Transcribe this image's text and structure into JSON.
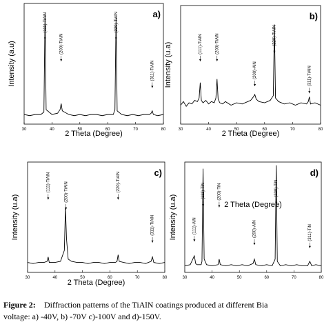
{
  "chart_data": [
    {
      "type": "line",
      "label": "a)",
      "xlabel": "2 Theta (Degree)",
      "ylabel": "Intensity (a.u)",
      "x": [
        30,
        32,
        34,
        36,
        37.1,
        37.5,
        37.9,
        40,
        42,
        42.9,
        43.3,
        43.7,
        46,
        48,
        50,
        52,
        54,
        56,
        58,
        60,
        62,
        62.6,
        63,
        63.4,
        65,
        67,
        69,
        71,
        73,
        75,
        75.6,
        76,
        76.4,
        78,
        80
      ],
      "series": [
        {
          "color": "#000000",
          "values": [
            8,
            7,
            8,
            8,
            10,
            91,
            12,
            8,
            9,
            12,
            17,
            11,
            8,
            7,
            8,
            7,
            8,
            8,
            7,
            8,
            8,
            12,
            89,
            11,
            8,
            7,
            8,
            7,
            8,
            8,
            9,
            11,
            8,
            7,
            8
          ]
        }
      ],
      "xlim": [
        30,
        80
      ],
      "ylim": [
        0,
        100
      ],
      "xticks": [
        30,
        40,
        50,
        60,
        70,
        80
      ],
      "annotations": [
        {
          "text": "(111)-TiAlN",
          "x": 37.5,
          "y": 70
        },
        {
          "text": "(200)-TiAlN",
          "x": 43.3,
          "y": 52
        },
        {
          "text": "(220)-TiAlN",
          "x": 63,
          "y": 70
        },
        {
          "text": "(311)-TiAlN",
          "x": 76,
          "y": 30
        }
      ]
    },
    {
      "type": "line",
      "label": "b)",
      "xlabel": "2 Theta (Degree)",
      "ylabel": "Intensity (u.a)",
      "x": [
        30,
        31,
        32,
        33,
        34,
        35,
        36,
        36.6,
        37,
        37.4,
        38,
        39,
        40,
        41,
        42,
        42.6,
        43,
        43.4,
        44,
        45,
        46,
        48,
        50,
        52,
        54,
        55,
        56,
        56.5,
        57,
        58,
        60,
        62,
        63.1,
        63.5,
        63.9,
        65,
        67,
        69,
        71,
        73,
        75,
        75.6,
        76,
        76.4,
        78,
        80
      ],
      "series": [
        {
          "color": "#000000",
          "values": [
            16,
            19,
            15,
            18,
            17,
            20,
            19,
            22,
            35,
            20,
            18,
            20,
            17,
            19,
            18,
            22,
            38,
            21,
            18,
            17,
            19,
            16,
            18,
            17,
            19,
            20,
            23,
            25,
            21,
            19,
            18,
            20,
            24,
            84,
            22,
            19,
            17,
            18,
            16,
            18,
            17,
            19,
            23,
            17,
            18,
            16
          ]
        }
      ],
      "xlim": [
        30,
        80
      ],
      "ylim": [
        0,
        100
      ],
      "xticks": [
        30,
        40,
        50,
        60,
        70,
        80
      ],
      "annotations": [
        {
          "text": "(111)-TiAlN",
          "x": 37,
          "y": 53
        },
        {
          "text": "(200)-TiAlN",
          "x": 43,
          "y": 53
        },
        {
          "text": "(200)-AlN",
          "x": 56.5,
          "y": 32
        },
        {
          "text": "(220)-TiAlN",
          "x": 63.5,
          "y": 60
        },
        {
          "text": "(311)-TiAlN",
          "x": 76,
          "y": 26
        }
      ]
    },
    {
      "type": "line",
      "label": "c)",
      "xlabel": "2 Theta (Degree)",
      "ylabel": "Intensity (u.a)",
      "x": [
        30,
        32,
        34,
        36,
        37.1,
        37.5,
        37.9,
        40,
        42,
        43.4,
        43.8,
        44.2,
        44.8,
        46,
        48,
        50,
        52,
        54,
        56,
        58,
        60,
        62,
        62.6,
        63,
        63.4,
        65,
        67,
        69,
        71,
        73,
        75,
        75.5,
        76,
        78,
        80
      ],
      "series": [
        {
          "color": "#000000",
          "values": [
            9,
            8,
            9,
            9,
            10,
            14,
            9,
            9,
            10,
            20,
            59,
            30,
            12,
            10,
            9,
            9,
            8,
            9,
            9,
            8,
            9,
            9,
            10,
            16,
            10,
            9,
            8,
            9,
            9,
            8,
            10,
            14,
            9,
            8,
            9
          ]
        }
      ],
      "xlim": [
        30,
        80
      ],
      "ylim": [
        0,
        100
      ],
      "xticks": [
        30,
        40,
        50,
        60,
        70,
        80
      ],
      "annotations": [
        {
          "text": "(111)-TiAlN",
          "x": 37.5,
          "y": 66
        },
        {
          "text": "(200)-TiAlN",
          "x": 44,
          "y": 57
        },
        {
          "text": "(220)-TiAlN",
          "x": 63,
          "y": 66
        },
        {
          "text": "(311)-TiAlN",
          "x": 75.5,
          "y": 27
        }
      ]
    },
    {
      "type": "line",
      "label": "d)",
      "xlabel": "2 Theta (Degree)",
      "ylabel": "Intensity (u.a)",
      "x": [
        30,
        32,
        33.5,
        34,
        34.5,
        36,
        36.3,
        36.7,
        37.1,
        38,
        40,
        42.2,
        42.6,
        43,
        45,
        47,
        49,
        51,
        53,
        55,
        55.5,
        56,
        58,
        60,
        62,
        63.1,
        63.5,
        63.9,
        65,
        67,
        69,
        71,
        73,
        75,
        75.8,
        76.5,
        78,
        80
      ],
      "series": [
        {
          "color": "#000000",
          "values": [
            6,
            7,
            15,
            8,
            7,
            7,
            10,
            94,
            12,
            7,
            6,
            7,
            12,
            7,
            6,
            7,
            6,
            7,
            6,
            8,
            12,
            7,
            6,
            7,
            6,
            12,
            97,
            10,
            6,
            7,
            6,
            7,
            6,
            6,
            10,
            6,
            7,
            6
          ]
        }
      ],
      "xlim": [
        30,
        80
      ],
      "ylim": [
        0,
        100
      ],
      "xticks": [
        30,
        40,
        50,
        60,
        70,
        80
      ],
      "annotations": [
        {
          "text": "(111)-AlN",
          "x": 33.5,
          "y": 28
        },
        {
          "text": "(111)-TiN",
          "x": 36.7,
          "y": 60
        },
        {
          "text": "(200)-TiN",
          "x": 42.6,
          "y": 59
        },
        {
          "text": "(200)-AlN",
          "x": 55.5,
          "y": 25
        },
        {
          "text": "(220)-TiN",
          "x": 63.5,
          "y": 62
        },
        {
          "text": "(311)-TiN",
          "x": 75.8,
          "y": 22
        }
      ]
    }
  ],
  "caption": {
    "label": "Figure 2:",
    "lines": [
      "Diffraction patterns of the TiAlN coatings produced at different Bia",
      "voltage: a) -40V, b) -70V c)-100V and d)-150V."
    ]
  }
}
